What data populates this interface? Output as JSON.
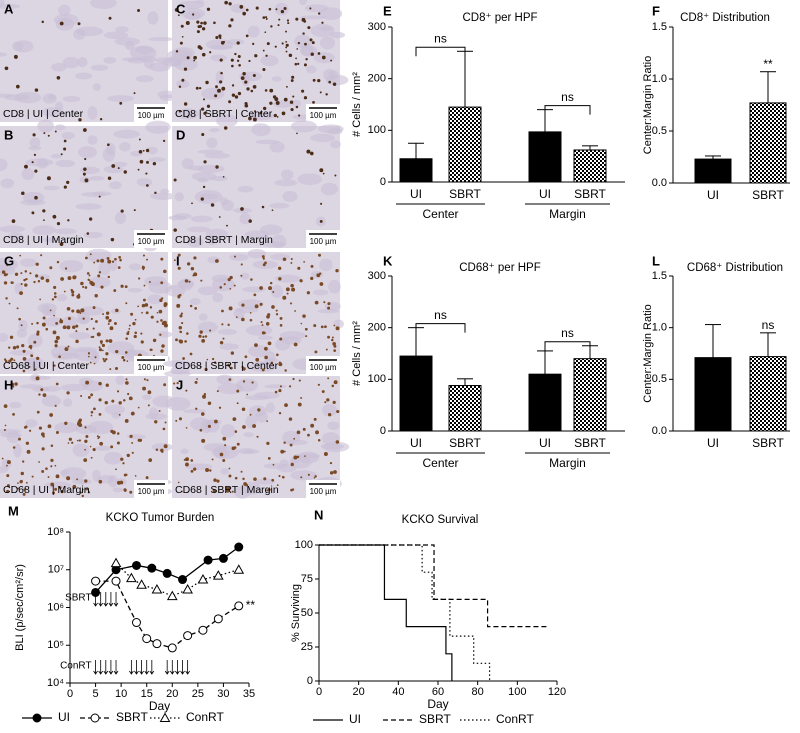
{
  "micrographs": [
    {
      "letter": "A",
      "caption": "CD8 | UI | Center",
      "scale_bar": "100 µm"
    },
    {
      "letter": "C",
      "caption": "CD8 | SBRT | Center",
      "scale_bar": "100 µm"
    },
    {
      "letter": "B",
      "caption": "CD8 | UI | Margin",
      "scale_bar": "100 µm"
    },
    {
      "letter": "D",
      "caption": "CD8 | SBRT | Margin",
      "scale_bar": "100 µm"
    },
    {
      "letter": "G",
      "caption": "CD68 | UI | Center",
      "scale_bar": "100 µm"
    },
    {
      "letter": "I",
      "caption": "CD68 | SBRT | Center",
      "scale_bar": "100 µm"
    },
    {
      "letter": "H",
      "caption": "CD68 | UI | Margin",
      "scale_bar": "100 µm"
    },
    {
      "letter": "J",
      "caption": "CD68 | SBRT | Margin",
      "scale_bar": "100 µm"
    }
  ],
  "chart_data": [
    {
      "type": "bar",
      "panel": "E",
      "title": "CD8⁺ per HPF",
      "ylabel": "# Cells / mm²",
      "categories": [
        "UI",
        "SBRT",
        "UI",
        "SBRT"
      ],
      "groups": [
        "Center",
        "Margin"
      ],
      "values": [
        45,
        145,
        97,
        62
      ],
      "errors": [
        30,
        108,
        43,
        8
      ],
      "fills": [
        "solid",
        "checkered",
        "solid",
        "checkered"
      ],
      "color": "#000000",
      "ylim": [
        0,
        300
      ],
      "yticks": [
        0,
        100,
        200,
        300
      ],
      "annotations": [
        {
          "text": "ns",
          "bars": [
            0,
            1
          ]
        },
        {
          "text": "ns",
          "bars": [
            2,
            3
          ]
        }
      ]
    },
    {
      "type": "bar",
      "panel": "F",
      "title": "CD8⁺ Distribution",
      "ylabel": "Center:Margin Ratio",
      "categories": [
        "UI",
        "SBRT"
      ],
      "values": [
        0.23,
        0.77
      ],
      "errors": [
        0.03,
        0.3
      ],
      "fills": [
        "solid",
        "checkered"
      ],
      "color": "#000000",
      "ylim": [
        0,
        1.5
      ],
      "yticks": [
        {
          "value": 0,
          "label": "0.0"
        },
        0.5,
        {
          "value": 1,
          "label": "1.0"
        },
        1.5
      ],
      "annotations": [
        {
          "text": "**",
          "bars": [
            1
          ]
        }
      ]
    },
    {
      "type": "bar",
      "panel": "K",
      "title": "CD68⁺ per HPF",
      "ylabel": "# Cells / mm²",
      "categories": [
        "UI",
        "SBRT",
        "UI",
        "SBRT"
      ],
      "groups": [
        "Center",
        "Margin"
      ],
      "values": [
        145,
        88,
        110,
        140
      ],
      "errors": [
        55,
        13,
        45,
        25
      ],
      "fills": [
        "solid",
        "checkered",
        "solid",
        "checkered"
      ],
      "color": "#000000",
      "ylim": [
        0,
        300
      ],
      "yticks": [
        0,
        100,
        200,
        300
      ],
      "annotations": [
        {
          "text": "ns",
          "bars": [
            0,
            1
          ]
        },
        {
          "text": "ns",
          "bars": [
            2,
            3
          ]
        }
      ]
    },
    {
      "type": "bar",
      "panel": "L",
      "title": "CD68⁺ Distribution",
      "ylabel": "Center:Margin Ratio",
      "categories": [
        "UI",
        "SBRT"
      ],
      "values": [
        0.71,
        0.72
      ],
      "errors": [
        0.32,
        0.23
      ],
      "fills": [
        "solid",
        "checkered"
      ],
      "color": "#000000",
      "ylim": [
        0,
        1.5
      ],
      "yticks": [
        {
          "value": 0,
          "label": "0.0"
        },
        0.5,
        {
          "value": 1,
          "label": "1.0"
        },
        1.5
      ],
      "annotations": [
        {
          "text": "ns",
          "bars": [
            1
          ]
        }
      ]
    },
    {
      "type": "line",
      "panel": "M",
      "title": "KCKO Tumor Burden",
      "xlabel": "Day",
      "ylabel": "BLI (p/sec/cm²/sr)",
      "yscale": "log",
      "xlim": [
        0,
        35
      ],
      "xticks": [
        0,
        5,
        10,
        15,
        20,
        25,
        30,
        35
      ],
      "ylim": [
        10000,
        100000000
      ],
      "yticks": [
        {
          "value": 10000,
          "label": "10⁴"
        },
        {
          "value": 100000,
          "label": "10⁵"
        },
        {
          "value": 1000000,
          "label": "10⁶"
        },
        {
          "value": 10000000,
          "label": "10⁷"
        },
        {
          "value": 100000000,
          "label": "10⁸"
        }
      ],
      "series": [
        {
          "name": "UI",
          "color": "#000000",
          "marker": "filled-circle",
          "line": "solid",
          "x": [
            5,
            9,
            13,
            16,
            19,
            22,
            27,
            30,
            33
          ],
          "values": [
            2500000,
            10000000,
            13000000,
            11000000,
            8000000,
            5500000,
            18000000,
            20000000,
            40000000
          ]
        },
        {
          "name": "SBRT",
          "color": "#000000",
          "marker": "open-circle",
          "line": "dashed",
          "x": [
            5,
            9,
            13,
            15,
            17,
            20,
            23,
            26,
            29,
            33
          ],
          "values": [
            5000000,
            5000000,
            400000,
            150000,
            110000,
            85000,
            180000,
            250000,
            500000,
            1100000
          ]
        },
        {
          "name": "ConRT",
          "color": "#000000",
          "marker": "open-triangle",
          "line": "dotted",
          "x": [
            9,
            12,
            14,
            17,
            20,
            23,
            26,
            29,
            33
          ],
          "values": [
            15000000,
            6000000,
            4000000,
            3000000,
            2000000,
            3000000,
            5500000,
            7000000,
            10000000
          ]
        }
      ],
      "treatments": [
        {
          "name": "SBRT",
          "days": [
            5,
            6,
            7,
            8,
            9
          ]
        },
        {
          "name": "ConRT",
          "days": [
            5,
            6,
            7,
            8,
            9,
            12,
            13,
            14,
            15,
            16,
            19,
            20,
            21,
            22,
            23
          ]
        }
      ],
      "annotations": [
        {
          "text": "**",
          "series": 1
        }
      ]
    },
    {
      "type": "survival",
      "panel": "N",
      "title": "KCKO Survival",
      "xlabel": "Day",
      "ylabel": "% Surviving",
      "xlim": [
        0,
        120
      ],
      "xticks": [
        0,
        20,
        40,
        60,
        80,
        100,
        120
      ],
      "ylim": [
        0,
        100
      ],
      "yticks": [
        0,
        25,
        50,
        75,
        100
      ],
      "series": [
        {
          "name": "UI",
          "color": "#000000",
          "line": "solid",
          "x": [
            0,
            33,
            44,
            64,
            67
          ],
          "values": [
            100,
            60,
            40,
            20,
            0
          ]
        },
        {
          "name": "SBRT",
          "color": "#000000",
          "line": "dashed",
          "x": [
            0,
            58,
            85,
            115
          ],
          "values": [
            100,
            60,
            40,
            40
          ]
        },
        {
          "name": "ConRT",
          "color": "#000000",
          "line": "dotted",
          "x": [
            0,
            52,
            57,
            66,
            78,
            86
          ],
          "values": [
            100,
            80,
            60,
            33,
            13,
            0
          ]
        }
      ]
    }
  ]
}
